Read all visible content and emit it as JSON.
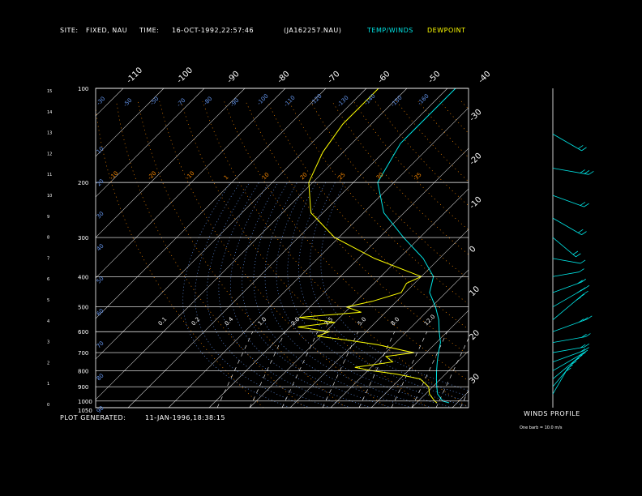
{
  "header": {
    "site_label": "SITE:",
    "site_value": "FIXED, NAU",
    "time_label": "TIME:",
    "time_value": "16-OCT-1992,22:57:46",
    "file": "(JA162257.NAU)",
    "legend_temp": "TEMP/WINDS",
    "legend_dew": "DEWPOINT"
  },
  "footer": {
    "generated_label": "PLOT GENERATED:",
    "generated_value": "11-JAN-1996,18:38:15",
    "winds_label": "WINDS PROFILE",
    "barb_note": "One barb = 10.0 m/s"
  },
  "colors": {
    "temperature": "#00e5e5",
    "dewpoint": "#ffff00",
    "isotherm": "#cccccc",
    "dry_adiabat": "#ff8c00",
    "moist_adiabat": "#6495ed",
    "mixing_ratio": "#ffffff"
  },
  "chart_data": {
    "type": "line",
    "pressure_ticks": [
      "100",
      "200",
      "300",
      "400",
      "500",
      "600",
      "700",
      "800",
      "900",
      "1000",
      "1050"
    ],
    "pressure_values": [
      100,
      200,
      300,
      400,
      500,
      600,
      700,
      800,
      900,
      1000,
      1050
    ],
    "height_ticks": [
      "15",
      "14",
      "13",
      "12",
      "11",
      "10",
      "9",
      "8",
      "7",
      "6",
      "5",
      "4",
      "3",
      "2",
      "1",
      "0"
    ],
    "top_isotherm_labels": [
      "-110",
      "-100",
      "-90",
      "-80",
      "-70",
      "-60",
      "-50",
      "-40"
    ],
    "right_isotherm_labels": [
      "-30",
      "-20",
      "-10",
      "0",
      "10",
      "20",
      "30"
    ],
    "moist_labels_top": [
      "-30",
      "-50",
      "-50",
      "-70",
      "-80",
      "-90",
      "-100",
      "-110",
      "-120",
      "-130",
      "-140",
      "-150",
      "-160"
    ],
    "moist_labels_left": [
      "10",
      "20",
      "30",
      "40",
      "50",
      "60",
      "70",
      "80",
      "90"
    ],
    "dry_labels": [
      "-10",
      "-20",
      "-10",
      "1",
      "10",
      "20",
      "25",
      "30",
      "35"
    ],
    "mixing_labels": [
      "0.1",
      "0.2",
      "0.4",
      "1.0",
      "2.0",
      "3.5",
      "5.0",
      "8.0",
      "12.0"
    ],
    "series": [
      {
        "name": "TEMP/WINDS",
        "points": [
          [
            100,
            -58
          ],
          [
            150,
            -58
          ],
          [
            200,
            -54
          ],
          [
            250,
            -45
          ],
          [
            300,
            -34
          ],
          [
            350,
            -24
          ],
          [
            400,
            -17
          ],
          [
            450,
            -14
          ],
          [
            500,
            -9
          ],
          [
            550,
            -5
          ],
          [
            600,
            -2
          ],
          [
            650,
            1
          ],
          [
            700,
            3
          ],
          [
            750,
            5
          ],
          [
            800,
            7
          ],
          [
            850,
            9
          ],
          [
            900,
            11
          ],
          [
            950,
            13
          ],
          [
            1000,
            16
          ],
          [
            1013,
            18
          ]
        ]
      },
      {
        "name": "DEWPOINT",
        "points": [
          [
            100,
            -77
          ],
          [
            130,
            -77
          ],
          [
            160,
            -75
          ],
          [
            200,
            -71
          ],
          [
            250,
            -63
          ],
          [
            300,
            -51
          ],
          [
            350,
            -36
          ],
          [
            400,
            -20
          ],
          [
            420,
            -22
          ],
          [
            450,
            -21
          ],
          [
            480,
            -26
          ],
          [
            500,
            -31
          ],
          [
            520,
            -26
          ],
          [
            540,
            -40
          ],
          [
            560,
            -30
          ],
          [
            580,
            -38
          ],
          [
            600,
            -29
          ],
          [
            620,
            -31
          ],
          [
            640,
            -22
          ],
          [
            660,
            -14
          ],
          [
            690,
            -6
          ],
          [
            700,
            -3
          ],
          [
            720,
            -9
          ],
          [
            750,
            -6
          ],
          [
            780,
            -14
          ],
          [
            800,
            -9
          ],
          [
            820,
            -2
          ],
          [
            850,
            5
          ],
          [
            900,
            9
          ],
          [
            950,
            11
          ],
          [
            1000,
            14
          ],
          [
            1013,
            15
          ]
        ]
      }
    ],
    "winds": [
      {
        "p": 140,
        "dir": 300,
        "spd": 20
      },
      {
        "p": 180,
        "dir": 280,
        "spd": 25
      },
      {
        "p": 220,
        "dir": 290,
        "spd": 20
      },
      {
        "p": 260,
        "dir": 300,
        "spd": 20
      },
      {
        "p": 300,
        "dir": 310,
        "spd": 15
      },
      {
        "p": 350,
        "dir": 280,
        "spd": 12
      },
      {
        "p": 400,
        "dir": 260,
        "spd": 10
      },
      {
        "p": 450,
        "dir": 250,
        "spd": 15
      },
      {
        "p": 500,
        "dir": 240,
        "spd": 25
      },
      {
        "p": 550,
        "dir": 230,
        "spd": 30
      },
      {
        "p": 600,
        "dir": 250,
        "spd": 25
      },
      {
        "p": 650,
        "dir": 260,
        "spd": 20
      },
      {
        "p": 700,
        "dir": 260,
        "spd": 18
      },
      {
        "p": 750,
        "dir": 250,
        "spd": 20
      },
      {
        "p": 800,
        "dir": 240,
        "spd": 22
      },
      {
        "p": 850,
        "dir": 230,
        "spd": 25
      },
      {
        "p": 900,
        "dir": 220,
        "spd": 20
      },
      {
        "p": 950,
        "dir": 210,
        "spd": 15
      }
    ]
  }
}
